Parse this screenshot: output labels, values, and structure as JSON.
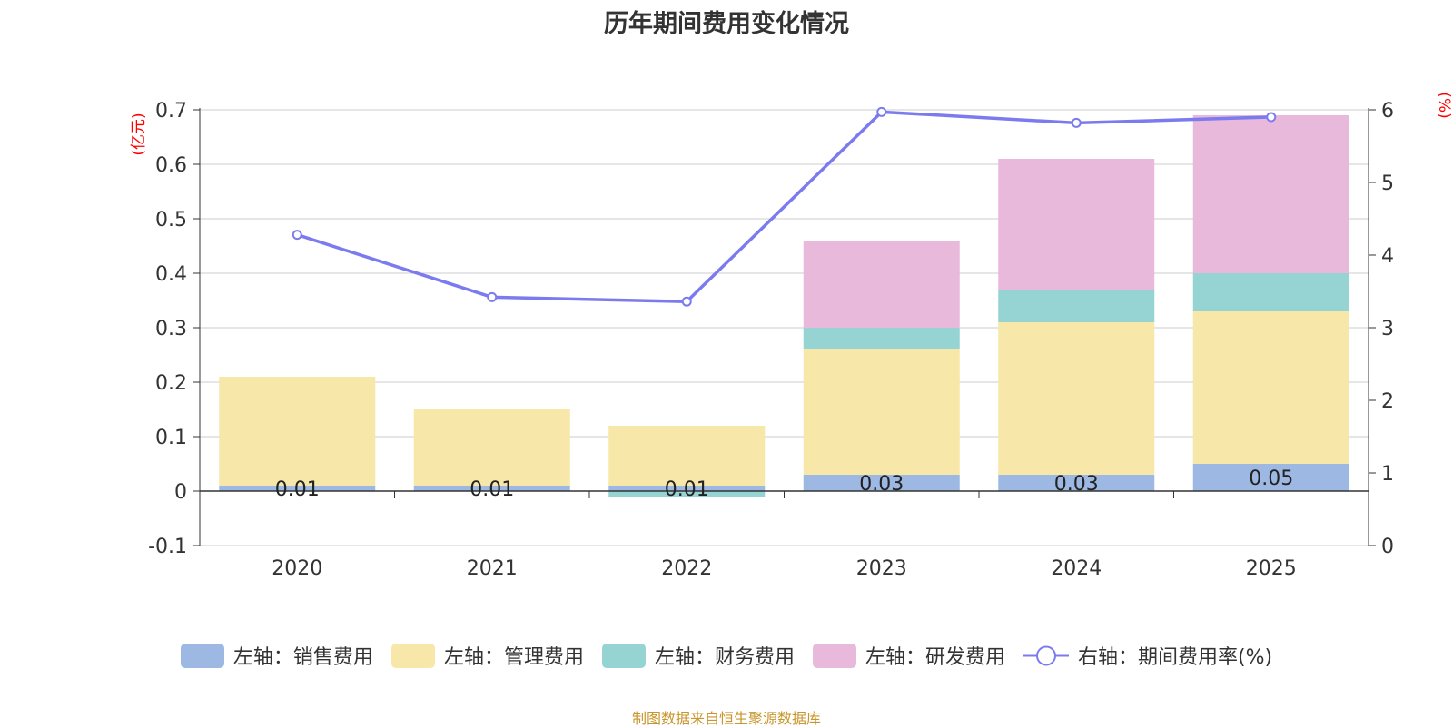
{
  "title": "历年期间费用变化情况",
  "source_text": "制图数据来自恒生聚源数据库",
  "colors": {
    "sales": "#9db8e3",
    "admin": "#f7e7a8",
    "finance": "#96d4d4",
    "rd": "#e8b9da",
    "rate": "#7b7bef",
    "unit": "#ff0000",
    "source": "#c8962c",
    "grid": "#cccccc",
    "axis": "#333333"
  },
  "chart_data": {
    "type": "bar",
    "stacked": true,
    "title": "历年期间费用变化情况",
    "categories": [
      "2020",
      "2021",
      "2022",
      "2023",
      "2024",
      "2025"
    ],
    "left_axis": {
      "unit": "(亿元)",
      "min": -0.1,
      "max": 0.7,
      "ticks": [
        "-0.1",
        "0",
        "0.1",
        "0.2",
        "0.3",
        "0.4",
        "0.5",
        "0.6",
        "0.7"
      ]
    },
    "right_axis": {
      "unit": "(%)",
      "min": 0,
      "max": 6,
      "ticks": [
        "0",
        "1",
        "2",
        "3",
        "4",
        "5",
        "6"
      ]
    },
    "series": [
      {
        "key": "sales",
        "name": "左轴：销售费用",
        "axis": "left",
        "values": [
          0.01,
          0.01,
          0.01,
          0.03,
          0.03,
          0.05
        ],
        "labels": [
          "0.01",
          "0.01",
          "0.01",
          "0.03",
          "0.03",
          "0.05"
        ]
      },
      {
        "key": "admin",
        "name": "左轴：管理费用",
        "axis": "left",
        "values": [
          0.2,
          0.14,
          0.11,
          0.23,
          0.28,
          0.28
        ]
      },
      {
        "key": "finance",
        "name": "左轴：财务费用",
        "axis": "left",
        "values": [
          0,
          0,
          -0.01,
          0.04,
          0.06,
          0.07
        ]
      },
      {
        "key": "rd",
        "name": "左轴：研发费用",
        "axis": "left",
        "values": [
          0,
          0,
          0,
          0.16,
          0.24,
          0.29
        ]
      },
      {
        "key": "rate",
        "name": "右轴：期间费用率(%)",
        "axis": "right",
        "type": "line",
        "values": [
          4.28,
          3.42,
          3.36,
          5.97,
          5.82,
          5.9
        ]
      }
    ],
    "legend_position": "bottom"
  }
}
